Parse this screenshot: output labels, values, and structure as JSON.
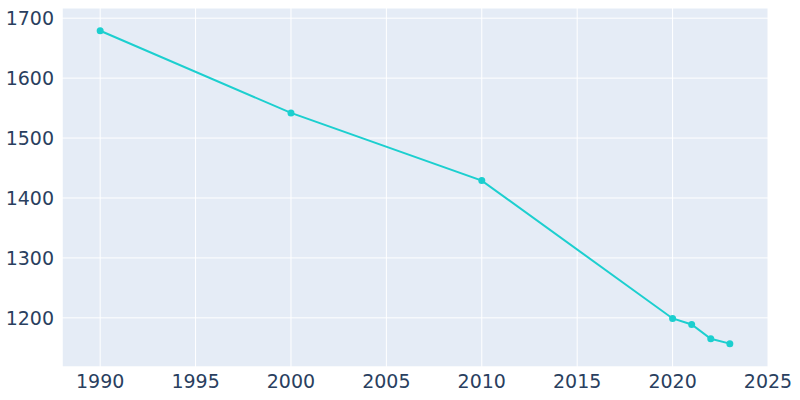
{
  "chart_data": {
    "type": "line",
    "x": [
      1990,
      2000,
      2010,
      2020,
      2021,
      2022,
      2023
    ],
    "values": [
      1679,
      1542,
      1429,
      1199,
      1189,
      1165,
      1157
    ],
    "color": "#1ccfcf",
    "xlim": [
      1988,
      2025
    ],
    "ylim": [
      1118,
      1717
    ],
    "xticks": [
      1990,
      1995,
      2000,
      2005,
      2010,
      2015,
      2020,
      2025
    ],
    "yticks": [
      1200,
      1300,
      1400,
      1500,
      1600,
      1700
    ],
    "grid": true,
    "marker": "circle"
  }
}
